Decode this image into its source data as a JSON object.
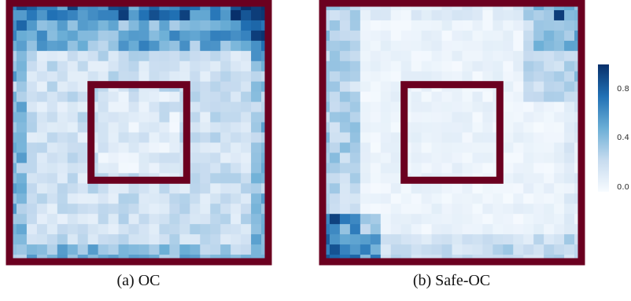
{
  "chart_data": [
    {
      "type": "heatmap",
      "caption": "(a) OC",
      "grid": {
        "rows": 26,
        "cols": 26
      },
      "colormap": "Blues",
      "clim": [
        0.0,
        1.0
      ],
      "frame_color": "#6b0020",
      "inner_square_cells": [
        8,
        18
      ],
      "pattern": "noisy low values overall; higher values (0.3-0.7) in top band, top-right corner and near the left/right/bottom edges; lighter interior",
      "max_value": 0.95,
      "max_location": "top-right corner"
    },
    {
      "type": "heatmap",
      "caption": "(b) Safe-OC",
      "grid": {
        "rows": 26,
        "cols": 26
      },
      "colormap": "Blues",
      "clim": [
        0.0,
        1.0
      ],
      "frame_color": "#6b0020",
      "inner_square_cells": [
        8,
        18
      ],
      "pattern": "mostly near-zero interior; higher values along left edge, bottom-left corner, and a diagonal streak toward the top-right corner",
      "max_value": 0.95,
      "max_location": "top-right corner"
    }
  ],
  "colorbar": {
    "ticks": [
      "0.8",
      "0.4",
      "0.0"
    ],
    "tick_values": [
      0.8,
      0.4,
      0.0
    ],
    "range": [
      0.0,
      0.95
    ]
  },
  "captions": {
    "a": "(a) OC",
    "b": "(b) Safe-OC"
  }
}
